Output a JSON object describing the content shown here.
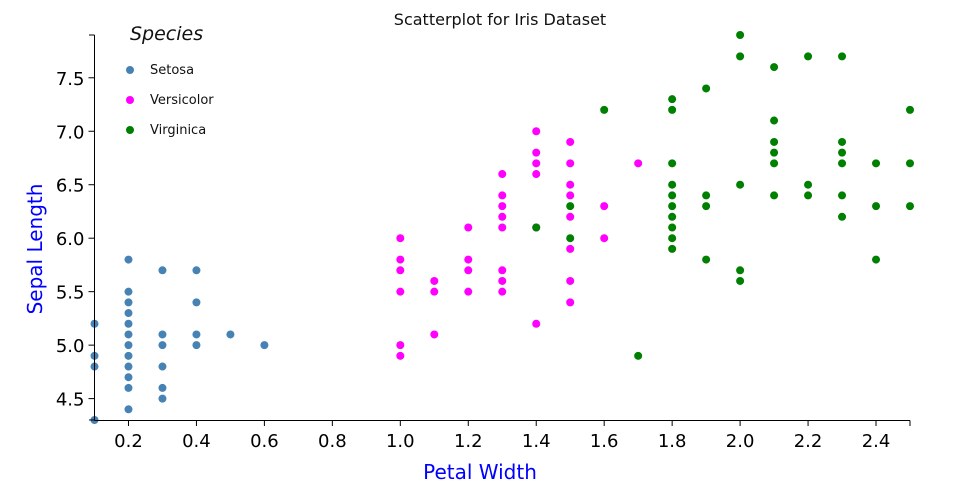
{
  "chart_data": {
    "type": "scatter",
    "title": "Scatterplot for Iris Dataset",
    "xlabel": "Petal Width",
    "ylabel": "Sepal Length",
    "xlim": [
      0.1,
      2.5
    ],
    "ylim": [
      4.3,
      7.9
    ],
    "x_ticks": [
      "0.2",
      "0.4",
      "0.6",
      "0.8",
      "1.0",
      "1.2",
      "1.4",
      "1.6",
      "1.8",
      "2.0",
      "2.2",
      "2.4"
    ],
    "y_ticks": [
      "4.5",
      "5.0",
      "5.5",
      "6.0",
      "6.5",
      "7.0",
      "7.5"
    ],
    "axis_label_color": "#0000ff",
    "legend": {
      "title": "Species",
      "placement": "top-left"
    },
    "series": [
      {
        "name": "Setosa",
        "color": "#4682b4",
        "points": [
          [
            0.1,
            5.2
          ],
          [
            0.1,
            4.9
          ],
          [
            0.1,
            4.8
          ],
          [
            0.1,
            4.3
          ],
          [
            0.2,
            5.8
          ],
          [
            0.2,
            5.5
          ],
          [
            0.2,
            5.4
          ],
          [
            0.2,
            5.3
          ],
          [
            0.2,
            5.2
          ],
          [
            0.2,
            5.1
          ],
          [
            0.2,
            5.0
          ],
          [
            0.2,
            4.9
          ],
          [
            0.2,
            4.8
          ],
          [
            0.2,
            4.7
          ],
          [
            0.2,
            4.6
          ],
          [
            0.2,
            4.4
          ],
          [
            0.3,
            5.7
          ],
          [
            0.3,
            5.1
          ],
          [
            0.3,
            5.0
          ],
          [
            0.3,
            4.8
          ],
          [
            0.3,
            4.6
          ],
          [
            0.3,
            4.5
          ],
          [
            0.4,
            5.7
          ],
          [
            0.4,
            5.4
          ],
          [
            0.4,
            5.1
          ],
          [
            0.4,
            5.0
          ],
          [
            0.5,
            5.1
          ],
          [
            0.6,
            5.0
          ]
        ]
      },
      {
        "name": "Versicolor",
        "color": "#ff00ff",
        "points": [
          [
            1.0,
            6.0
          ],
          [
            1.0,
            5.8
          ],
          [
            1.0,
            5.7
          ],
          [
            1.0,
            5.5
          ],
          [
            1.0,
            5.0
          ],
          [
            1.0,
            4.9
          ],
          [
            1.1,
            5.6
          ],
          [
            1.1,
            5.5
          ],
          [
            1.1,
            5.1
          ],
          [
            1.2,
            6.1
          ],
          [
            1.2,
            5.8
          ],
          [
            1.2,
            5.7
          ],
          [
            1.2,
            5.5
          ],
          [
            1.3,
            6.6
          ],
          [
            1.3,
            6.4
          ],
          [
            1.3,
            6.3
          ],
          [
            1.3,
            6.2
          ],
          [
            1.3,
            6.1
          ],
          [
            1.3,
            5.7
          ],
          [
            1.3,
            5.6
          ],
          [
            1.3,
            5.5
          ],
          [
            1.4,
            7.0
          ],
          [
            1.4,
            6.8
          ],
          [
            1.4,
            6.7
          ],
          [
            1.4,
            6.6
          ],
          [
            1.4,
            6.1
          ],
          [
            1.4,
            5.2
          ],
          [
            1.5,
            6.9
          ],
          [
            1.5,
            6.7
          ],
          [
            1.5,
            6.5
          ],
          [
            1.5,
            6.4
          ],
          [
            1.5,
            6.2
          ],
          [
            1.5,
            5.9
          ],
          [
            1.5,
            5.6
          ],
          [
            1.5,
            5.4
          ],
          [
            1.6,
            6.3
          ],
          [
            1.6,
            6.0
          ],
          [
            1.7,
            6.7
          ]
        ]
      },
      {
        "name": "Virginica",
        "color": "#008000",
        "points": [
          [
            1.4,
            6.1
          ],
          [
            1.5,
            6.3
          ],
          [
            1.5,
            6.0
          ],
          [
            1.6,
            7.2
          ],
          [
            1.7,
            4.9
          ],
          [
            1.8,
            7.3
          ],
          [
            1.8,
            7.2
          ],
          [
            1.8,
            6.7
          ],
          [
            1.8,
            6.5
          ],
          [
            1.8,
            6.4
          ],
          [
            1.8,
            6.3
          ],
          [
            1.8,
            6.2
          ],
          [
            1.8,
            6.1
          ],
          [
            1.8,
            6.0
          ],
          [
            1.8,
            5.9
          ],
          [
            1.9,
            7.4
          ],
          [
            1.9,
            6.4
          ],
          [
            1.9,
            6.3
          ],
          [
            1.9,
            5.8
          ],
          [
            2.0,
            7.9
          ],
          [
            2.0,
            7.7
          ],
          [
            2.0,
            6.5
          ],
          [
            2.0,
            5.7
          ],
          [
            2.0,
            5.6
          ],
          [
            2.1,
            7.6
          ],
          [
            2.1,
            7.1
          ],
          [
            2.1,
            6.9
          ],
          [
            2.1,
            6.8
          ],
          [
            2.1,
            6.7
          ],
          [
            2.1,
            6.4
          ],
          [
            2.2,
            7.7
          ],
          [
            2.2,
            6.5
          ],
          [
            2.2,
            6.4
          ],
          [
            2.3,
            7.7
          ],
          [
            2.3,
            6.9
          ],
          [
            2.3,
            6.8
          ],
          [
            2.3,
            6.7
          ],
          [
            2.3,
            6.4
          ],
          [
            2.3,
            6.2
          ],
          [
            2.4,
            6.7
          ],
          [
            2.4,
            6.3
          ],
          [
            2.4,
            5.8
          ],
          [
            2.5,
            7.2
          ],
          [
            2.5,
            6.7
          ],
          [
            2.5,
            6.3
          ]
        ]
      }
    ]
  }
}
